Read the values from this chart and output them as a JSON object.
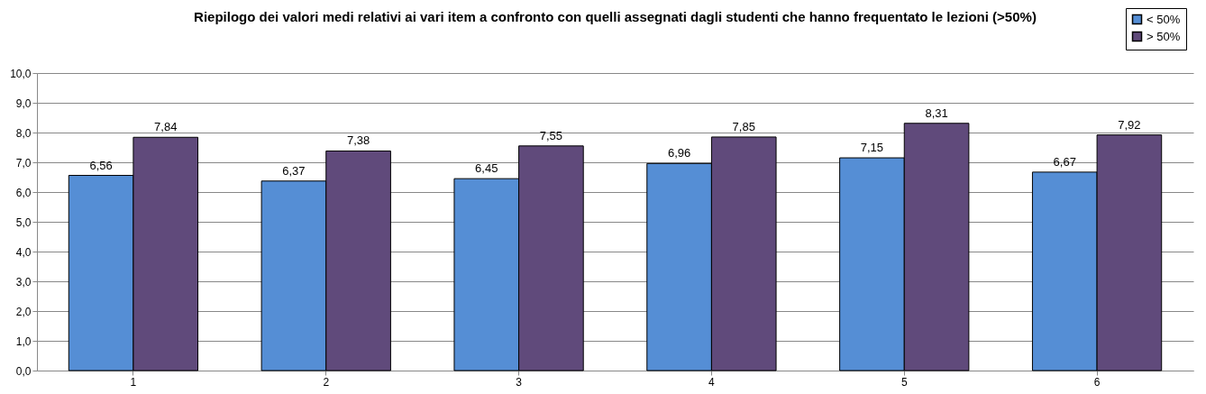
{
  "chart_data": {
    "type": "bar",
    "title": "Riepilogo dei valori medi relativi ai vari item a confronto con quelli assegnati dagli studenti  che hanno frequentato le lezioni (>50%)",
    "categories": [
      "1",
      "2",
      "3",
      "4",
      "5",
      "6"
    ],
    "series": [
      {
        "name": "< 50%",
        "color": "#558ed5",
        "values": [
          6.56,
          6.37,
          6.45,
          6.96,
          7.15,
          6.67
        ],
        "value_labels": [
          "6,56",
          "6,37",
          "6,45",
          "6,96",
          "7,15",
          "6,67"
        ]
      },
      {
        "name": "> 50%",
        "color": "#604a7b",
        "values": [
          7.84,
          7.38,
          7.55,
          7.85,
          8.31,
          7.92
        ],
        "value_labels": [
          "7,84",
          "7,38",
          "7,55",
          "7,85",
          "8,31",
          "7,92"
        ]
      }
    ],
    "ylim": [
      0,
      10
    ],
    "yticks": [
      {
        "value": 0,
        "label": "0,0"
      },
      {
        "value": 1,
        "label": "1,0"
      },
      {
        "value": 2,
        "label": "2,0"
      },
      {
        "value": 3,
        "label": "3,0"
      },
      {
        "value": 4,
        "label": "4,0"
      },
      {
        "value": 5,
        "label": "5,0"
      },
      {
        "value": 6,
        "label": "6,0"
      },
      {
        "value": 7,
        "label": "7,0"
      },
      {
        "value": 8,
        "label": "8,0"
      },
      {
        "value": 9,
        "label": "9,0"
      },
      {
        "value": 10,
        "label": "10,0"
      }
    ],
    "grid": "y",
    "legend": "top right"
  }
}
